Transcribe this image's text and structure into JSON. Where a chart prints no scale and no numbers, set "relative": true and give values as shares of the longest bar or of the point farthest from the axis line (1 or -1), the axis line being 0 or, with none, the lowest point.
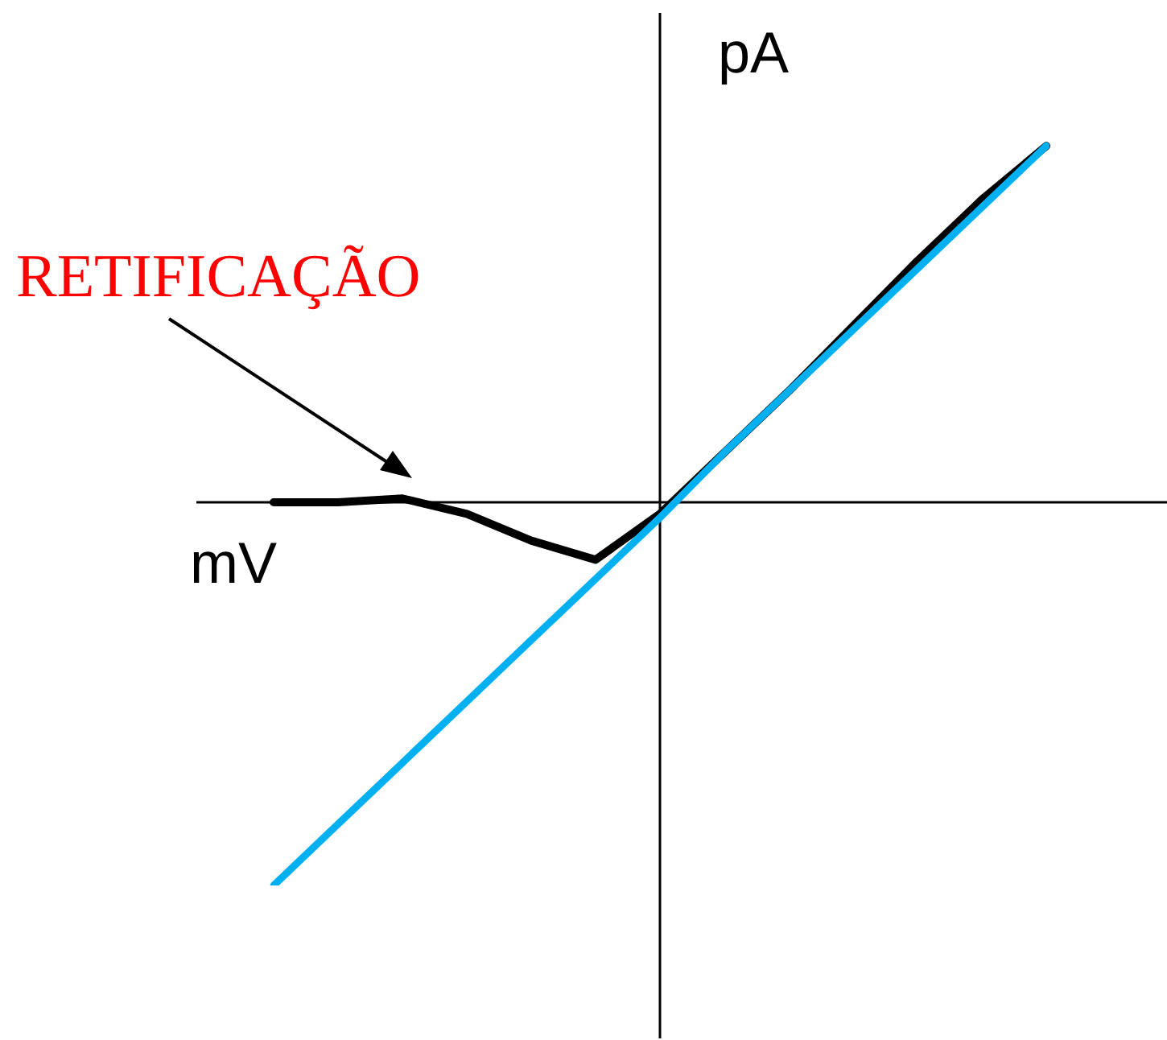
{
  "chart_data": {
    "type": "line",
    "relative": true,
    "xlabel": "mV",
    "ylabel": "pA",
    "legend": false,
    "marker": "none",
    "categories": [
      null,
      null,
      null,
      null,
      null,
      null,
      null,
      null,
      null,
      null,
      null,
      null,
      null
    ],
    "series": [
      {
        "color": "#00b0f0",
        "values": [
          -1,
          -0.84,
          -0.68,
          -0.52,
          -0.36,
          -0.2,
          -0.04,
          0.13,
          0.29,
          0.45,
          0.61,
          0.77,
          0.93
        ]
      },
      {
        "color": "#000000",
        "values": [
          0,
          0,
          0.01,
          -0.03,
          -0.1,
          -0.15,
          -0.03,
          0.13,
          0.29,
          0.46,
          0.63,
          0.79,
          0.93
        ]
      }
    ],
    "annotations": [
      "RETIFICAÇÃO"
    ]
  }
}
